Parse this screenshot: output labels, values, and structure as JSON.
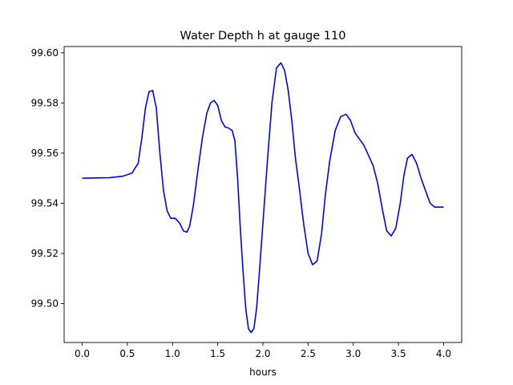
{
  "chart_data": {
    "type": "line",
    "title": "Water Depth h at gauge 110",
    "xlabel": "hours",
    "ylabel": "",
    "xlim": [
      -0.2,
      4.2
    ],
    "ylim": [
      99.4845,
      99.6025
    ],
    "xticks": [
      0.0,
      0.5,
      1.0,
      1.5,
      2.0,
      2.5,
      3.0,
      3.5,
      4.0
    ],
    "xtick_labels": [
      "0.0",
      "0.5",
      "1.0",
      "1.5",
      "2.0",
      "2.5",
      "3.0",
      "3.5",
      "4.0"
    ],
    "yticks": [
      99.5,
      99.52,
      99.54,
      99.56,
      99.58,
      99.6
    ],
    "ytick_labels": [
      "99.50",
      "99.52",
      "99.54",
      "99.56",
      "99.58",
      "99.60"
    ],
    "grid": false,
    "series": [
      {
        "color": "#0000ff",
        "x": [
          0.0,
          0.3,
          0.45,
          0.55,
          0.62,
          0.66,
          0.7,
          0.74,
          0.78,
          0.82,
          0.86,
          0.9,
          0.94,
          0.98,
          1.03,
          1.08,
          1.12,
          1.16,
          1.19,
          1.23,
          1.28,
          1.33,
          1.38,
          1.42,
          1.46,
          1.5,
          1.54,
          1.58,
          1.62,
          1.66,
          1.69,
          1.72,
          1.75,
          1.78,
          1.81,
          1.84,
          1.87,
          1.9,
          1.93,
          1.96,
          2.0,
          2.05,
          2.1,
          2.15,
          2.2,
          2.24,
          2.28,
          2.32,
          2.36,
          2.4,
          2.45,
          2.5,
          2.55,
          2.6,
          2.65,
          2.69,
          2.74,
          2.8,
          2.86,
          2.92,
          2.97,
          3.02,
          3.07,
          3.12,
          3.17,
          3.22,
          3.27,
          3.32,
          3.37,
          3.42,
          3.47,
          3.52,
          3.56,
          3.6,
          3.65,
          3.7,
          3.75,
          3.8,
          3.85,
          3.9,
          3.94,
          4.0
        ],
        "y": [
          99.55,
          99.5502,
          99.5508,
          99.552,
          99.556,
          99.566,
          99.578,
          99.5845,
          99.585,
          99.578,
          99.56,
          99.545,
          99.537,
          99.534,
          99.534,
          99.532,
          99.529,
          99.5285,
          99.531,
          99.539,
          99.553,
          99.566,
          99.576,
          99.58,
          99.581,
          99.579,
          99.573,
          99.5705,
          99.57,
          99.569,
          99.565,
          99.55,
          99.53,
          99.513,
          99.498,
          99.49,
          99.4885,
          99.49,
          99.498,
          99.512,
          99.532,
          99.557,
          99.58,
          99.594,
          99.596,
          99.593,
          99.585,
          99.573,
          99.558,
          99.547,
          99.532,
          99.52,
          99.5155,
          99.517,
          99.528,
          99.543,
          99.557,
          99.569,
          99.5745,
          99.5755,
          99.573,
          99.568,
          99.5655,
          99.563,
          99.559,
          99.555,
          99.548,
          99.538,
          99.529,
          99.527,
          99.53,
          99.54,
          99.551,
          99.558,
          99.5595,
          99.556,
          99.55,
          99.545,
          99.54,
          99.5385,
          99.5385,
          99.5385
        ]
      }
    ]
  }
}
